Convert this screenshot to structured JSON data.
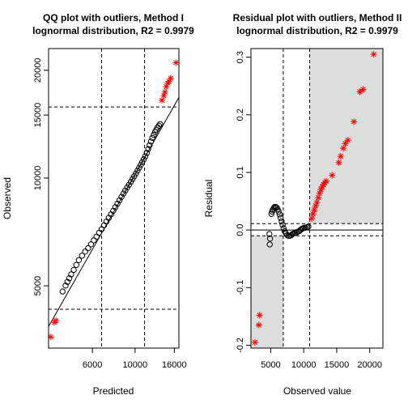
{
  "chart_data": [
    {
      "type": "scatter",
      "title": "QQ plot with outliers, Method I",
      "subtitle": "lognormal distribution, R2 = 0.9979",
      "xlabel": "Predicted",
      "ylabel": "Observed",
      "xscale": "log",
      "yscale": "log",
      "xlim": [
        3550,
        16900
      ],
      "ylim": [
        3350,
        23000
      ],
      "xticks": [
        6000,
        10000,
        16000
      ],
      "yticks": [
        5000,
        10000,
        15000,
        20000
      ],
      "grid": false,
      "vlines": [
        6700,
        11200
      ],
      "hlines": [
        4300,
        15800
      ],
      "fit_line": [
        [
          3550,
          3850
        ],
        [
          16900,
          16800
        ]
      ],
      "colors": {
        "inliers": "#000000",
        "outliers": "#ff0000",
        "lines": "#000000"
      },
      "series": [
        {
          "marker": "circle",
          "points": [
            [
              4200,
              4820
            ],
            [
              4350,
              5010
            ],
            [
              4450,
              5130
            ],
            [
              4550,
              5250
            ],
            [
              4650,
              5380
            ],
            [
              4800,
              5540
            ],
            [
              4950,
              5720
            ],
            [
              5100,
              5900
            ],
            [
              5300,
              6070
            ],
            [
              5500,
              6230
            ],
            [
              5700,
              6370
            ],
            [
              5900,
              6530
            ],
            [
              6100,
              6700
            ],
            [
              6300,
              6860
            ],
            [
              6500,
              7030
            ],
            [
              6700,
              7200
            ],
            [
              6900,
              7380
            ],
            [
              7100,
              7560
            ],
            [
              7300,
              7740
            ],
            [
              7500,
              7920
            ],
            [
              7700,
              8100
            ],
            [
              7900,
              8290
            ],
            [
              8100,
              8480
            ],
            [
              8300,
              8670
            ],
            [
              8500,
              8860
            ],
            [
              8700,
              9050
            ],
            [
              8900,
              9230
            ],
            [
              9100,
              9410
            ],
            [
              9300,
              9580
            ],
            [
              9500,
              9760
            ],
            [
              9700,
              9940
            ],
            [
              9900,
              10120
            ],
            [
              10100,
              10300
            ],
            [
              10300,
              10490
            ],
            [
              10500,
              10680
            ],
            [
              10700,
              10880
            ],
            [
              10900,
              11080
            ],
            [
              11100,
              11290
            ],
            [
              11300,
              11500
            ],
            [
              11500,
              11750
            ],
            [
              11700,
              12050
            ],
            [
              11900,
              12350
            ],
            [
              12100,
              12650
            ],
            [
              12300,
              12950
            ],
            [
              12500,
              13200
            ],
            [
              12700,
              13450
            ],
            [
              12900,
              13650
            ],
            [
              13100,
              13850
            ],
            [
              13300,
              14000
            ],
            [
              13500,
              14150
            ]
          ]
        },
        {
          "marker": "asterisk",
          "points": [
            [
              3650,
              3600
            ],
            [
              3800,
              3950
            ],
            [
              3880,
              4000
            ],
            [
              13800,
              16500
            ],
            [
              14100,
              17000
            ],
            [
              14300,
              17400
            ],
            [
              14500,
              18000
            ],
            [
              14800,
              18400
            ],
            [
              15000,
              18600
            ],
            [
              15300,
              19000
            ],
            [
              16300,
              21000
            ]
          ]
        }
      ]
    },
    {
      "type": "scatter",
      "title": "Residual plot with outliers, Method II",
      "subtitle": "lognormal distribution, R2 = 0.9979",
      "xlabel": "Observed value",
      "ylabel": "Residual",
      "xlim": [
        2000,
        22000
      ],
      "ylim": [
        -0.205,
        0.315
      ],
      "xticks": [
        5000,
        10000,
        15000,
        20000
      ],
      "yticks": [
        -0.2,
        -0.1,
        0.0,
        0.1,
        0.2,
        0.3
      ],
      "grid": false,
      "vlines": [
        6900,
        10900
      ],
      "hlines": [
        0.0,
        -0.01,
        0.011
      ],
      "shaded_regions": [
        {
          "x": [
            2000,
            6900
          ],
          "y": [
            -0.205,
            -0.01
          ]
        },
        {
          "x": [
            10900,
            22000
          ],
          "y": [
            0.011,
            0.315
          ]
        }
      ],
      "colors": {
        "inliers": "#000000",
        "outliers": "#ff0000",
        "shade": "#dddddd",
        "lines": "#000000"
      },
      "series": [
        {
          "marker": "circle",
          "points": [
            [
              4800,
              -0.007
            ],
            [
              4900,
              -0.015
            ],
            [
              4850,
              -0.025
            ],
            [
              5100,
              0.028
            ],
            [
              5200,
              0.032
            ],
            [
              5300,
              0.035
            ],
            [
              5450,
              0.038
            ],
            [
              5600,
              0.04
            ],
            [
              5750,
              0.04
            ],
            [
              5900,
              0.039
            ],
            [
              6050,
              0.036
            ],
            [
              6200,
              0.032
            ],
            [
              6350,
              0.027
            ],
            [
              6500,
              0.021
            ],
            [
              6650,
              0.015
            ],
            [
              6800,
              0.009
            ],
            [
              6950,
              0.003
            ],
            [
              7100,
              -0.002
            ],
            [
              7300,
              -0.006
            ],
            [
              7500,
              -0.009
            ],
            [
              7700,
              -0.01
            ],
            [
              7900,
              -0.01
            ],
            [
              8100,
              -0.009
            ],
            [
              8300,
              -0.007
            ],
            [
              8500,
              -0.006
            ],
            [
              8700,
              -0.005
            ],
            [
              8900,
              -0.004
            ],
            [
              9100,
              -0.003
            ],
            [
              9300,
              -0.002
            ],
            [
              9500,
              0.0
            ],
            [
              9700,
              0.002
            ],
            [
              9900,
              0.003
            ],
            [
              10100,
              0.004
            ],
            [
              10300,
              0.004
            ],
            [
              10500,
              0.005
            ],
            [
              10700,
              0.006
            ]
          ]
        },
        {
          "marker": "asterisk",
          "points": [
            [
              2600,
              -0.195
            ],
            [
              3200,
              -0.165
            ],
            [
              3300,
              -0.148
            ],
            [
              11200,
              0.02
            ],
            [
              11400,
              0.028
            ],
            [
              11600,
              0.035
            ],
            [
              11800,
              0.042
            ],
            [
              12000,
              0.048
            ],
            [
              12200,
              0.056
            ],
            [
              12400,
              0.064
            ],
            [
              12600,
              0.07
            ],
            [
              12800,
              0.075
            ],
            [
              13000,
              0.079
            ],
            [
              13200,
              0.082
            ],
            [
              13400,
              0.085
            ],
            [
              14300,
              0.095
            ],
            [
              15300,
              0.117
            ],
            [
              15600,
              0.128
            ],
            [
              16000,
              0.142
            ],
            [
              16300,
              0.15
            ],
            [
              16700,
              0.156
            ],
            [
              17600,
              0.188
            ],
            [
              18500,
              0.24
            ],
            [
              19000,
              0.244
            ],
            [
              20600,
              0.305
            ]
          ]
        }
      ]
    }
  ]
}
